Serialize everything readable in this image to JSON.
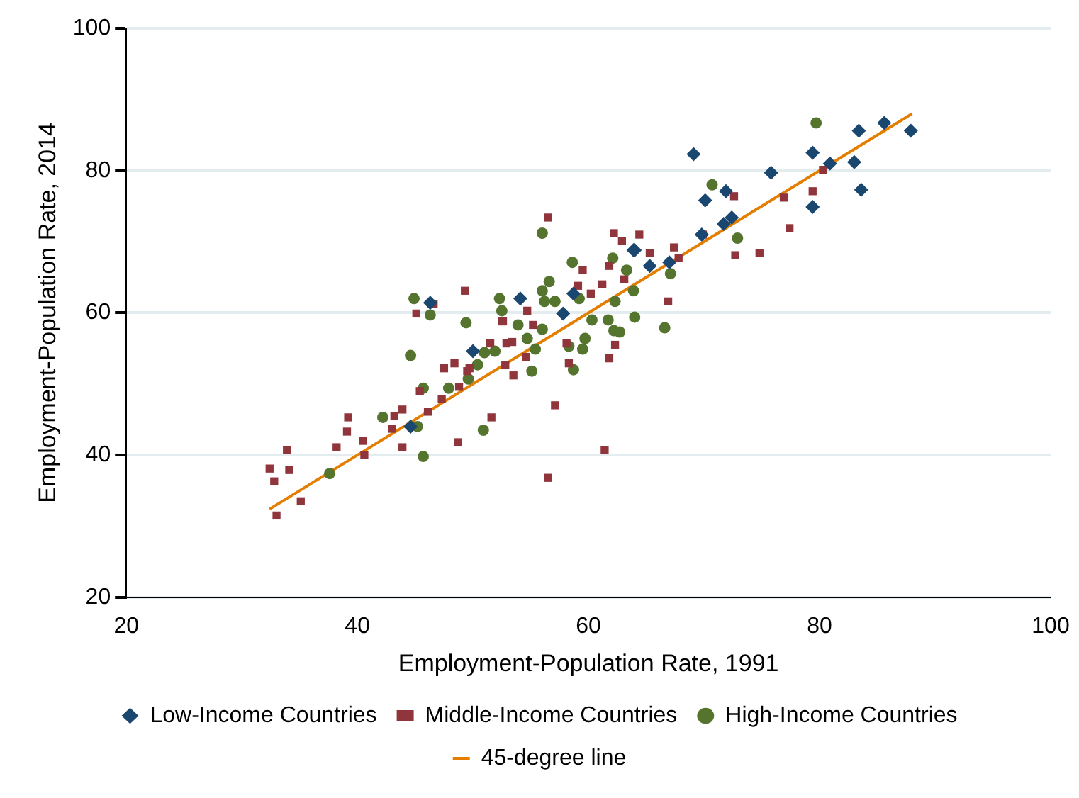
{
  "chart_data": {
    "type": "scatter",
    "xlabel": "Employment-Population Rate, 1991",
    "ylabel": "Employment-Population Rate, 2014",
    "xlim": [
      20,
      100
    ],
    "xticks": [
      20,
      40,
      60,
      80,
      100
    ],
    "ylim": [
      20,
      100
    ],
    "yticks": [
      20,
      40,
      60,
      80,
      100
    ],
    "grid": "y",
    "legend": "bottom",
    "series": [
      {
        "name": "Low-Income Countries",
        "color": "#1a476f",
        "marker": "diamond",
        "x": [
          46.3,
          50.0,
          44.6,
          54.1,
          57.8,
          63.9,
          65.3,
          67.0,
          58.7,
          69.1,
          70.1,
          71.9,
          71.7,
          72.4,
          75.8,
          79.4,
          79.4,
          80.9,
          83.0,
          83.6,
          83.4,
          85.6,
          87.9,
          69.8,
          64.0
        ],
        "values": [
          61.4,
          54.6,
          44.0,
          62.0,
          59.9,
          68.8,
          66.6,
          67.1,
          62.7,
          82.3,
          75.8,
          77.1,
          72.5,
          73.4,
          79.7,
          82.5,
          74.9,
          81.0,
          81.2,
          77.3,
          85.6,
          86.7,
          85.6,
          71.0,
          68.8
        ]
      },
      {
        "name": "Middle-Income Countries",
        "color": "#90353b",
        "marker": "square",
        "x": [
          33.0,
          35.1,
          32.8,
          32.4,
          34.1,
          33.9,
          38.2,
          40.5,
          40.6,
          39.1,
          39.2,
          43.9,
          43.0,
          43.2,
          43.9,
          45.4,
          46.1,
          47.3,
          48.7,
          51.6,
          47.5,
          48.4,
          49.5,
          45.1,
          46.6,
          49.3,
          48.8,
          52.6,
          51.5,
          52.9,
          52.8,
          56.5,
          52.5,
          55.2,
          53.4,
          54.6,
          53.5,
          49.7,
          57.1,
          56.5,
          61.4,
          58.1,
          58.3,
          59.5,
          59.1,
          60.2,
          61.2,
          62.2,
          62.9,
          64.4,
          65.3,
          67.4,
          67.8,
          61.8,
          63.1,
          66.9,
          62.3,
          61.8,
          54.7,
          69.9,
          72.6,
          72.7,
          74.8,
          76.9,
          77.4,
          79.4,
          80.3
        ],
        "values": [
          31.5,
          33.5,
          36.3,
          38.1,
          37.9,
          40.7,
          41.1,
          42.0,
          40.0,
          43.3,
          45.3,
          41.1,
          43.7,
          45.5,
          46.4,
          49.0,
          46.1,
          47.9,
          41.8,
          45.3,
          52.2,
          52.9,
          51.8,
          59.9,
          61.2,
          63.1,
          49.6,
          58.8,
          55.7,
          55.7,
          52.7,
          73.4,
          58.8,
          58.3,
          55.9,
          53.8,
          51.2,
          52.2,
          47.0,
          36.8,
          40.7,
          55.7,
          52.9,
          66.0,
          63.8,
          62.7,
          64.0,
          71.2,
          70.1,
          71.0,
          68.4,
          69.2,
          67.7,
          66.6,
          64.7,
          61.6,
          55.5,
          53.6,
          60.3,
          71.0,
          76.4,
          68.1,
          68.4,
          76.2,
          71.9,
          77.1,
          80.1
        ]
      },
      {
        "name": "High-Income Countries",
        "color": "#55752f",
        "marker": "circle",
        "x": [
          37.6,
          42.2,
          45.2,
          45.7,
          44.6,
          45.7,
          44.9,
          46.3,
          49.4,
          50.9,
          47.9,
          49.6,
          50.4,
          51.0,
          51.9,
          52.3,
          52.5,
          56.0,
          58.6,
          56.6,
          56.0,
          53.9,
          56.2,
          57.1,
          59.2,
          60.3,
          61.7,
          62.3,
          64.0,
          63.9,
          62.1,
          63.3,
          66.6,
          62.2,
          62.7,
          59.7,
          58.3,
          59.5,
          54.7,
          55.4,
          56.0,
          58.7,
          55.1,
          79.7,
          70.7,
          72.9,
          67.1
        ],
        "values": [
          37.4,
          45.3,
          44.0,
          39.8,
          54.0,
          49.4,
          62.0,
          59.7,
          58.6,
          43.5,
          49.4,
          50.7,
          52.7,
          54.4,
          54.6,
          62.0,
          60.3,
          71.2,
          67.1,
          64.4,
          63.1,
          58.3,
          61.6,
          61.6,
          62.0,
          59.0,
          59.0,
          61.6,
          59.4,
          63.1,
          67.7,
          66.0,
          57.9,
          57.5,
          57.3,
          56.4,
          55.3,
          54.9,
          56.4,
          54.9,
          57.7,
          52.0,
          51.8,
          86.7,
          78.0,
          70.5,
          65.5
        ]
      },
      {
        "name": "45-degree line",
        "type": "line",
        "color": "#e37e00",
        "marker": "none",
        "x": [
          32.4,
          88.0
        ],
        "values": [
          32.4,
          88.0
        ]
      }
    ]
  }
}
